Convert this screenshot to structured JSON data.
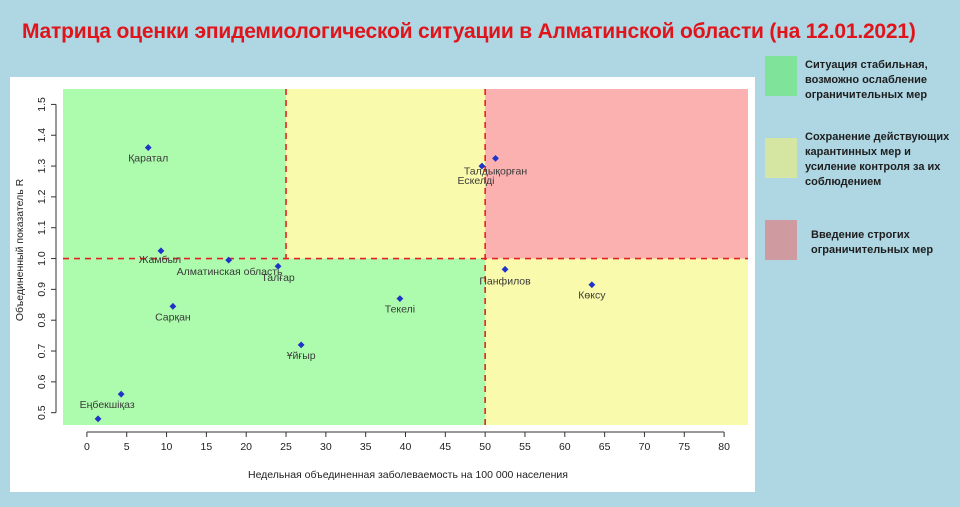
{
  "title": "Матрица оценки эпидемиологической ситуации в Алматинской области (на 12.01.2021)",
  "legend": [
    {
      "color": "#80e39a",
      "label": "Ситуация стабильная, возможно ослабление ограничительных мер"
    },
    {
      "color": "#d4e6a1",
      "label": "Сохранение действующих карантинных мер и усиление контроля за их соблюдением"
    },
    {
      "color": "#cf9aa0",
      "label": "Введение строгих ограничительных мер"
    }
  ],
  "chart_data": {
    "type": "scatter",
    "xlabel": "Недельная объединенная заболеваемость на 100 000 населения",
    "ylabel": "Объединенный показатель R",
    "xlim": [
      -3,
      83
    ],
    "ylim": [
      0.46,
      1.55
    ],
    "xticks": [
      0,
      5,
      10,
      15,
      20,
      25,
      30,
      35,
      40,
      45,
      50,
      55,
      60,
      65,
      70,
      75,
      80
    ],
    "yticks": [
      0.5,
      0.6,
      0.7,
      0.8,
      0.9,
      1.0,
      1.1,
      1.2,
      1.3,
      1.4,
      1.5
    ],
    "ytick_labels": [
      "0.5",
      "0.6",
      "0.7",
      "0.8",
      "0.9",
      "1.0",
      "1.1",
      "1.2",
      "1.3",
      "1.4",
      "1.5"
    ],
    "thresholds": {
      "x": [
        25,
        50
      ],
      "y": 1.0
    },
    "zone_colors": {
      "green": "#adfbad",
      "yellow": "#fafaac",
      "red": "#fcb1b1"
    },
    "threshold_color": "#e52222",
    "point_color": "#1f33c8",
    "points": [
      {
        "name": "Қаратал",
        "x": 7.7,
        "y": 1.36
      },
      {
        "name": "Талдықорған",
        "x": 51.3,
        "y": 1.325
      },
      {
        "name": "Ескелді",
        "x": 49.6,
        "y": 1.3
      },
      {
        "name": "Жамбыл",
        "x": 9.3,
        "y": 1.025
      },
      {
        "name": "Алматинская область",
        "x": 17.8,
        "y": 0.995
      },
      {
        "name": "Талғар",
        "x": 24,
        "y": 0.975
      },
      {
        "name": "Панфилов",
        "x": 52.5,
        "y": 0.965
      },
      {
        "name": "Көксу",
        "x": 63.4,
        "y": 0.915
      },
      {
        "name": "Текелі",
        "x": 39.3,
        "y": 0.87
      },
      {
        "name": "Сарқан",
        "x": 10.8,
        "y": 0.845
      },
      {
        "name": "Ұйғыр",
        "x": 26.9,
        "y": 0.72
      },
      {
        "name": "Еңбекшіқаз",
        "x": 4.3,
        "y": 0.56
      },
      {
        "name": "",
        "x": 1.4,
        "y": 0.48
      }
    ]
  }
}
